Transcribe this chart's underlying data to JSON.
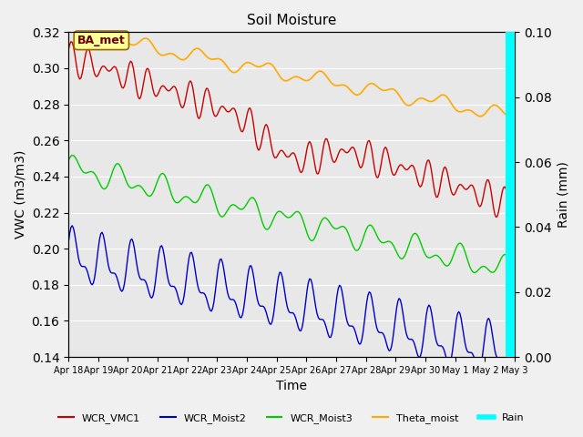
{
  "title": "Soil Moisture",
  "xlabel": "Time",
  "ylabel_left": "VWC (m3/m3)",
  "ylabel_right": "Rain (mm)",
  "annotation": "BA_met",
  "ylim_left": [
    0.14,
    0.32
  ],
  "ylim_right": [
    0.0,
    0.1
  ],
  "yticks_left": [
    0.14,
    0.16,
    0.18,
    0.2,
    0.22,
    0.24,
    0.26,
    0.28,
    0.3,
    0.32
  ],
  "yticks_right": [
    0.0,
    0.02,
    0.04,
    0.06,
    0.08,
    0.1
  ],
  "colors": {
    "WCR_VMC1": "#cc0000",
    "WCR_Moist2": "#0000cc",
    "WCR_Moist3": "#00cc00",
    "Theta_moist": "#ffaa00",
    "Rain": "#00ffff"
  },
  "background_color": "#e8e8e8",
  "plot_bg_color": "#e8e8e8",
  "n_points": 360,
  "start_day": 0,
  "end_day": 15.0
}
